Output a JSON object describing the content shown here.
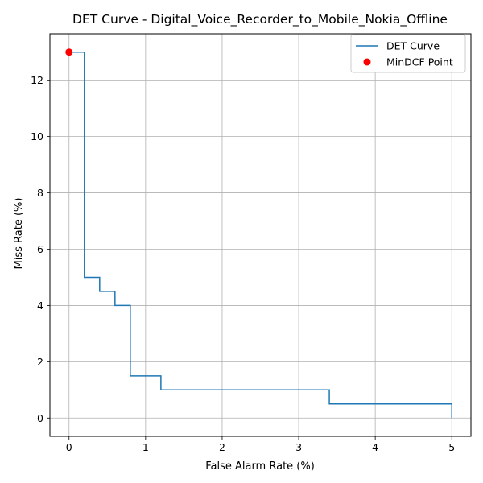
{
  "chart_data": {
    "type": "line",
    "title": "DET Curve - Digital_Voice_Recorder_to_Mobile_Nokia_Offline",
    "xlabel": "False Alarm Rate (%)",
    "ylabel": "Miss Rate (%)",
    "xlim": [
      -0.25,
      5.25
    ],
    "ylim": [
      -0.65,
      13.65
    ],
    "xticks": [
      0,
      1,
      2,
      3,
      4,
      5
    ],
    "yticks": [
      0,
      2,
      4,
      6,
      8,
      10,
      12
    ],
    "xtick_labels": [
      "0",
      "1",
      "2",
      "3",
      "4",
      "5"
    ],
    "ytick_labels": [
      "0",
      "2",
      "4",
      "6",
      "8",
      "10",
      "12"
    ],
    "grid": true,
    "legend_position": "top-right",
    "series": [
      {
        "name": "DET Curve",
        "kind": "step-line",
        "color": "#1f77b4",
        "x": [
          0,
          0.2,
          0.2,
          0.4,
          0.4,
          0.6,
          0.6,
          0.8,
          0.8,
          1.2,
          1.2,
          3.4,
          3.4,
          5.0,
          5.0
        ],
        "y": [
          13,
          13,
          5,
          5,
          4.5,
          4.5,
          4,
          4,
          1.5,
          1.5,
          1,
          1,
          0.5,
          0.5,
          0
        ]
      },
      {
        "name": "MinDCF Point",
        "kind": "scatter",
        "color": "#ff0000",
        "x": [
          0
        ],
        "y": [
          13
        ]
      }
    ]
  }
}
